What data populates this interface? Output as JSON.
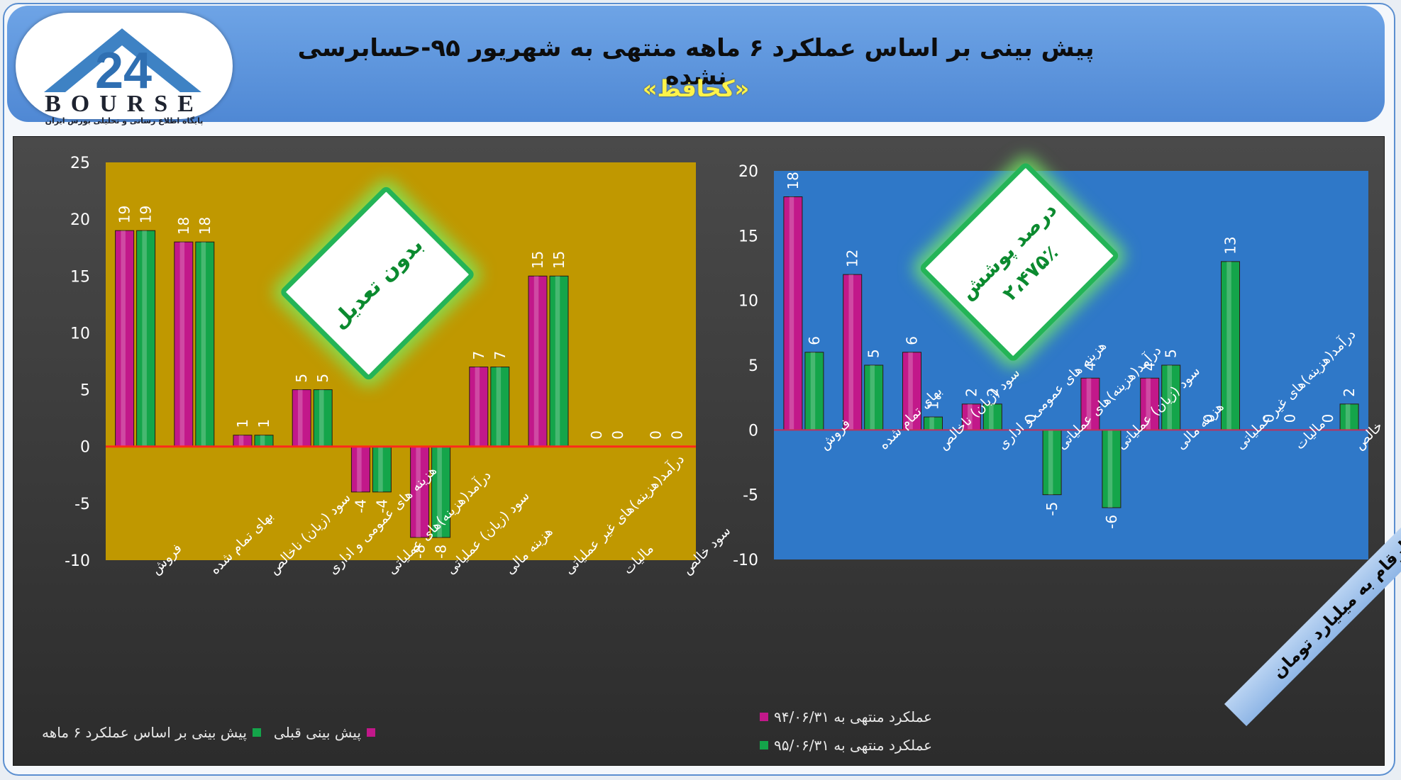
{
  "header": {
    "title": "پیش بینی بر اساس عملکرد ۶ ماهه منتهی به شهریور ۹۵-حسابرسی نشده",
    "symbol": "«کحافظ»"
  },
  "logo": {
    "word": "BOURSE",
    "number": "24",
    "tagline": "پایگاه اطلاع رسانی و تحلیلی بورس ایران"
  },
  "units_label": "ارقام به میلیارد تومان",
  "colors": {
    "magenta": "#c2188a",
    "green": "#14a54a",
    "left_plot_bg": "#c09800",
    "right_plot_bg": "#2f78c8",
    "zero_line": "#e02020"
  },
  "chart_data": [
    {
      "type": "bar",
      "callout": "بدون تعدیل",
      "categories": [
        "فروش",
        "بهای تمام شده",
        "سود (زیان) ناخالص",
        "هزینه های عمومی و اداری",
        "درآمد(هزینه)های عملیاتی",
        "سود (زیان) عملیاتی",
        "هزینه مالی",
        "درآمد(هزینه)های غیر عملیاتی",
        "مالیات",
        "سود خالص"
      ],
      "series": [
        {
          "name": "پیش بینی قبلی",
          "color": "#c2188a",
          "values": [
            19,
            18,
            1,
            5,
            -4,
            -8,
            7,
            15,
            0,
            0
          ]
        },
        {
          "name": "پیش بینی بر اساس عملکرد ۶ ماهه",
          "color": "#14a54a",
          "values": [
            19,
            18,
            1,
            5,
            -4,
            -8,
            7,
            15,
            0,
            0
          ]
        }
      ],
      "ylim": [
        -10,
        25
      ],
      "yticks": [
        25,
        20,
        15,
        10,
        5,
        0,
        -5,
        -10
      ],
      "grid": false,
      "legend": "bottom"
    },
    {
      "type": "bar",
      "callout": "درصد پوشش",
      "callout_value": "۲،۴۷۵٪",
      "categories": [
        "فروش",
        "بهای تمام شده",
        "سود (زیان) ناخالص",
        "هزینه های عمومی و اداری",
        "درآمد(هزینه)های عملیاتی",
        "سود (زیان) عملیاتی",
        "هزینه مالی",
        "درآمد(هزینه)های غیر عملیاتی",
        "مالیات",
        "سود خالص"
      ],
      "series": [
        {
          "name": "عملکرد منتهی به ۹۴/۰۶/۳۱",
          "color": "#c2188a",
          "values": [
            18,
            12,
            6,
            2,
            0,
            4,
            4,
            0,
            0,
            0
          ]
        },
        {
          "name": "عملکرد منتهی به ۹۵/۰۶/۳۱",
          "color": "#14a54a",
          "values": [
            6,
            5,
            1,
            2,
            -5,
            -6,
            5,
            13,
            0,
            2
          ]
        }
      ],
      "ylim": [
        -10,
        20
      ],
      "yticks": [
        20,
        15,
        10,
        5,
        0,
        -5,
        -10
      ],
      "grid": false,
      "legend": "bottom-left"
    }
  ]
}
